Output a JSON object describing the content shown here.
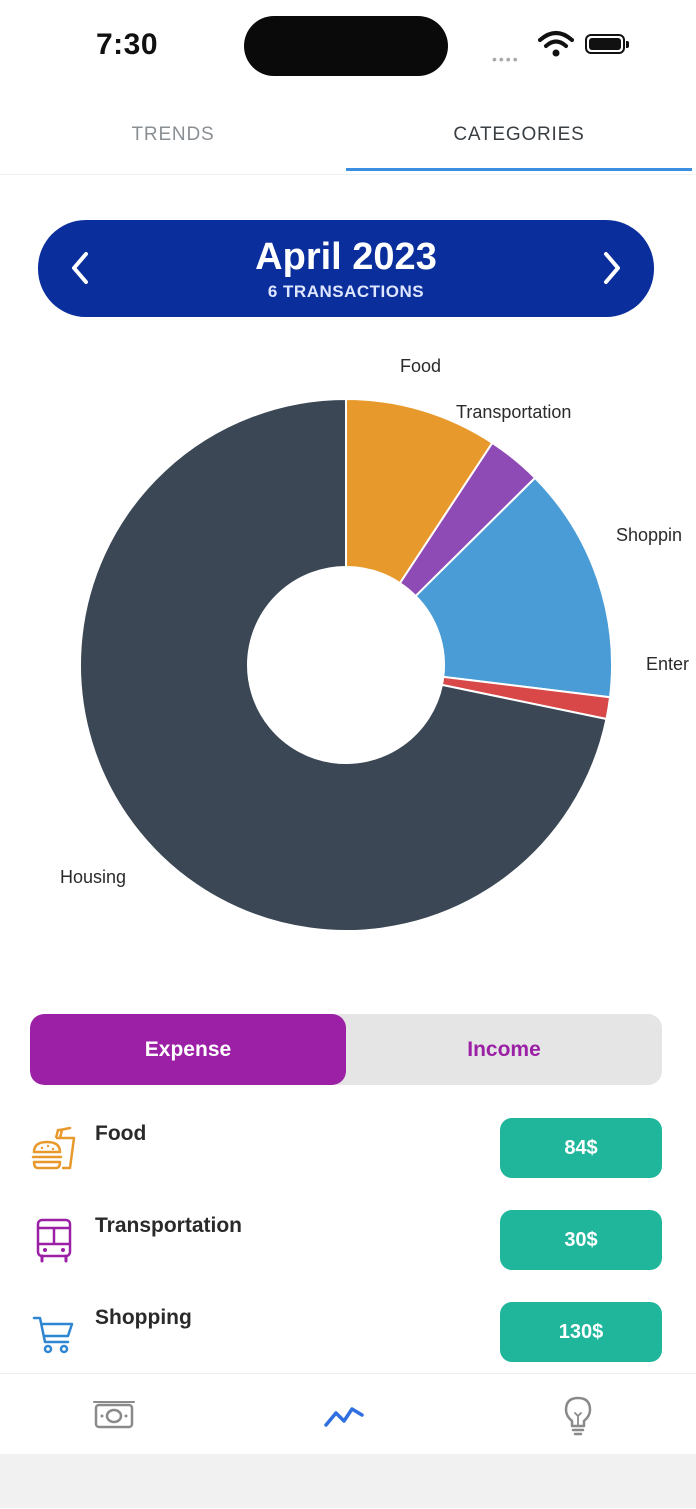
{
  "status_bar": {
    "time": "7:30"
  },
  "tabs": [
    {
      "label": "TRENDS",
      "active": false
    },
    {
      "label": "CATEGORIES",
      "active": true
    }
  ],
  "month_selector": {
    "title": "April 2023",
    "subtitle": "6 TRANSACTIONS"
  },
  "chart_data": {
    "type": "pie",
    "donut": true,
    "slices": [
      {
        "label": "Food",
        "value": 84,
        "color": "#E8992C"
      },
      {
        "label": "Transportation",
        "value": 30,
        "color": "#8E4AB5"
      },
      {
        "label": "Shopping",
        "value": 130,
        "color": "#4A9CD6"
      },
      {
        "label": "Entertainment",
        "display_label": "Enter",
        "value": 12,
        "color": "#D94848"
      },
      {
        "label": "Housing",
        "display_label": "Housing",
        "value": 650,
        "color": "#3B4755"
      }
    ],
    "labels_shown": [
      "Food",
      "Transportation",
      "Shoppin",
      "Enter",
      "Housing"
    ]
  },
  "segment": {
    "expense_label": "Expense",
    "income_label": "Income",
    "selected": "expense"
  },
  "categories": [
    {
      "name": "Food",
      "amount": "84$",
      "icon": "food-icon",
      "color": "#E8992C"
    },
    {
      "name": "Transportation",
      "amount": "30$",
      "icon": "bus-icon",
      "color": "#9B20A6"
    },
    {
      "name": "Shopping",
      "amount": "130$",
      "icon": "cart-icon",
      "color": "#2E86D1"
    }
  ],
  "bottom_nav": [
    {
      "icon": "money-icon",
      "active": false
    },
    {
      "icon": "trend-icon",
      "active": true
    },
    {
      "icon": "lightbulb-icon",
      "active": false
    }
  ]
}
